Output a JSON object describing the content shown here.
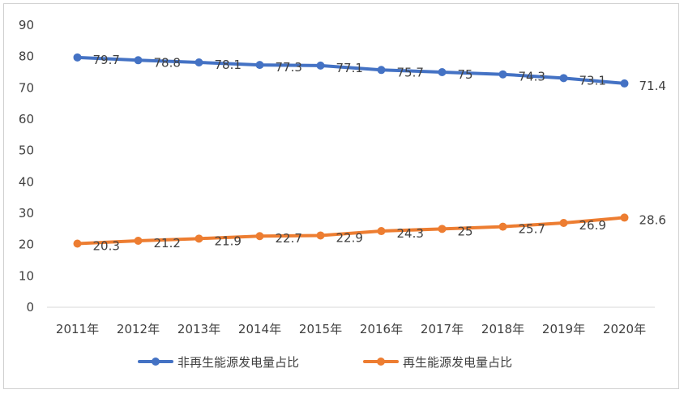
{
  "chart_data": {
    "type": "line",
    "categories": [
      "2011年",
      "2012年",
      "2013年",
      "2014年",
      "2015年",
      "2016年",
      "2017年",
      "2018年",
      "2019年",
      "2020年"
    ],
    "series": [
      {
        "name": "非再生能源发电量占比",
        "color": "#4472C4",
        "values": [
          79.7,
          78.8,
          78.1,
          77.3,
          77.1,
          75.7,
          75,
          74.3,
          73.1,
          71.4
        ]
      },
      {
        "name": "再生能源发电量占比",
        "color": "#ED7D31",
        "values": [
          20.3,
          21.2,
          21.9,
          22.7,
          22.9,
          24.3,
          25,
          25.7,
          26.9,
          28.6
        ]
      }
    ],
    "ylim": [
      0,
      90
    ],
    "yticks": [
      0,
      10,
      20,
      30,
      40,
      50,
      60,
      70,
      80,
      90
    ],
    "grid": false,
    "legend": "bottom",
    "data_labels": true
  }
}
